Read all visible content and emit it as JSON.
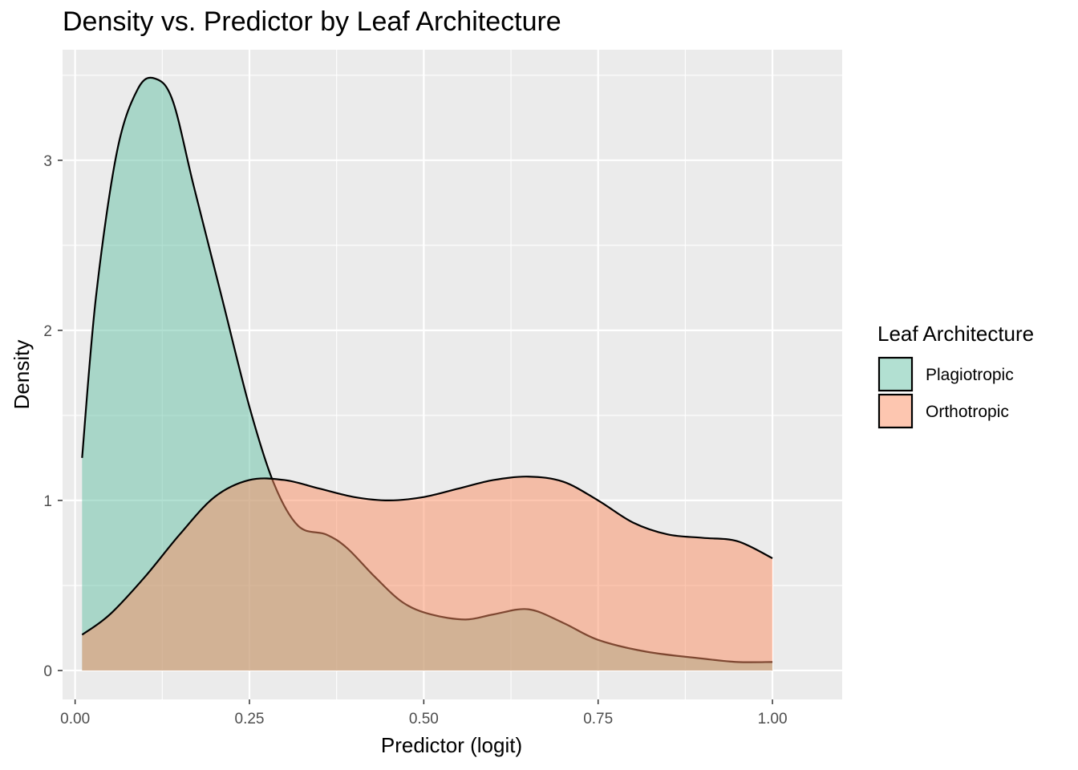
{
  "chart_data": {
    "type": "area",
    "title": "Density vs. Predictor by Leaf Architecture",
    "xlabel": "Predictor (logit)",
    "ylabel": "Density",
    "xlim": [
      -0.018,
      1.1
    ],
    "ylim": [
      -0.17,
      3.65
    ],
    "x_ticks": [
      0.0,
      0.25,
      0.5,
      0.75,
      1.0
    ],
    "x_tick_labels": [
      "0.00",
      "0.25",
      "0.50",
      "0.75",
      "1.00"
    ],
    "y_ticks": [
      0,
      1,
      2,
      3
    ],
    "y_tick_labels": [
      "0",
      "1",
      "2",
      "3"
    ],
    "grid": true,
    "panel_background": "#ebebeb",
    "legend": {
      "title": "Leaf Architecture",
      "position": "right"
    },
    "series": [
      {
        "name": "Plagiotropic",
        "color": "#66c2a5",
        "x": [
          0.01,
          0.03,
          0.06,
          0.09,
          0.115,
          0.14,
          0.17,
          0.21,
          0.25,
          0.285,
          0.32,
          0.36,
          0.39,
          0.43,
          0.47,
          0.51,
          0.56,
          0.6,
          0.65,
          0.7,
          0.75,
          0.82,
          0.9,
          0.95,
          1.0
        ],
        "y": [
          1.25,
          2.2,
          3.05,
          3.42,
          3.48,
          3.35,
          2.85,
          2.2,
          1.55,
          1.1,
          0.85,
          0.8,
          0.72,
          0.55,
          0.4,
          0.33,
          0.3,
          0.33,
          0.36,
          0.28,
          0.18,
          0.11,
          0.07,
          0.05,
          0.05
        ]
      },
      {
        "name": "Orthotropic",
        "color": "#fc8d62",
        "x": [
          0.01,
          0.05,
          0.1,
          0.15,
          0.2,
          0.25,
          0.3,
          0.35,
          0.4,
          0.45,
          0.5,
          0.55,
          0.6,
          0.65,
          0.7,
          0.75,
          0.8,
          0.85,
          0.9,
          0.95,
          1.0
        ],
        "y": [
          0.21,
          0.33,
          0.55,
          0.8,
          1.02,
          1.12,
          1.12,
          1.07,
          1.02,
          1.0,
          1.02,
          1.07,
          1.12,
          1.14,
          1.11,
          1.0,
          0.87,
          0.8,
          0.78,
          0.76,
          0.66
        ]
      }
    ]
  }
}
